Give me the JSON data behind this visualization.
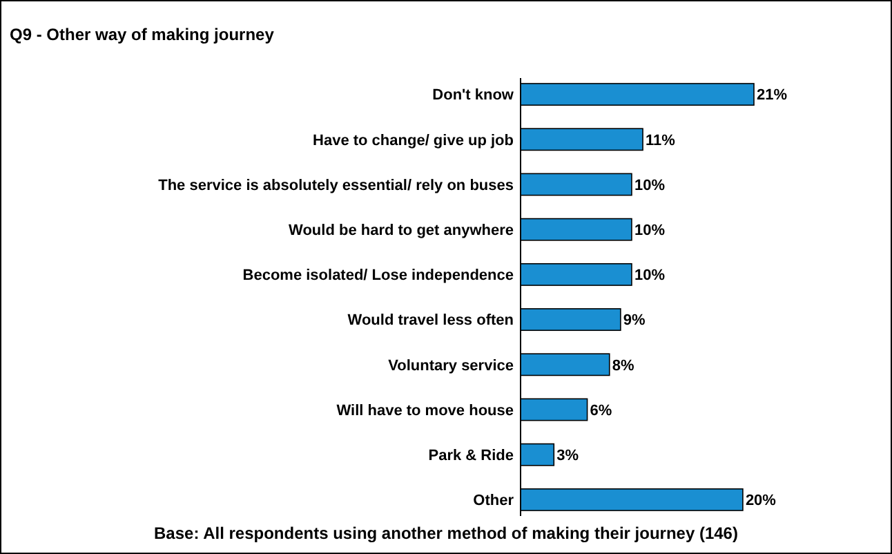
{
  "chart_data": {
    "type": "bar",
    "orientation": "horizontal",
    "title": "Q9 - Other way of making journey",
    "categories": [
      "Don't know",
      "Have to change/ give up job",
      "The service is absolutely essential/ rely on buses",
      "Would be hard to get anywhere",
      "Become isolated/ Lose independence",
      "Would travel less often",
      "Voluntary service",
      "Will have to move house",
      "Park & Ride",
      "Other"
    ],
    "values": [
      21,
      11,
      10,
      10,
      10,
      9,
      8,
      6,
      3,
      20
    ],
    "value_labels": [
      "21%",
      "11%",
      "10%",
      "10%",
      "10%",
      "9%",
      "8%",
      "6%",
      "3%",
      "20%"
    ],
    "color": "#1a8fd2",
    "annotations": [
      "Base: All respondents using another method of making their journey (146)"
    ]
  }
}
